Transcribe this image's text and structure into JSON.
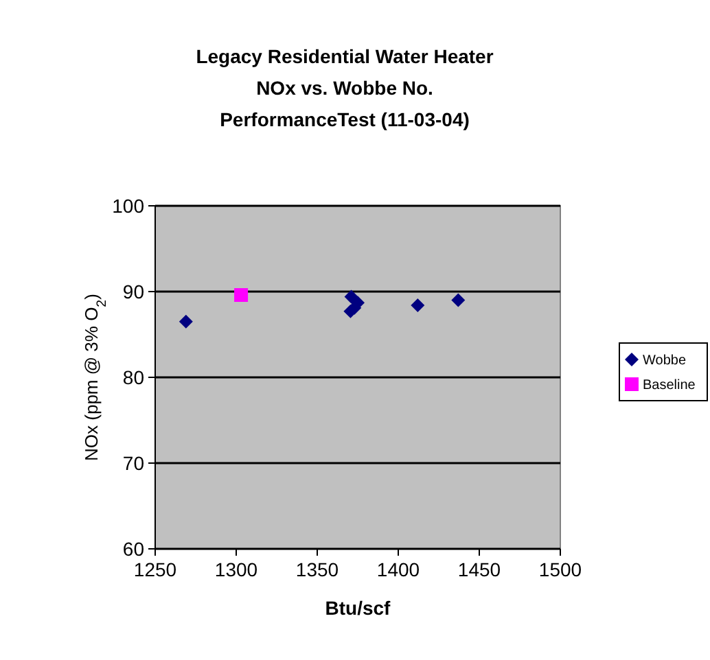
{
  "chart_data": {
    "type": "scatter",
    "title": "Legacy Residential Water Heater\nNOx vs. Wobbe No.\nPerformanceTest (11-03-04)",
    "xlabel": "Btu/scf",
    "ylabel": "NOx (ppm @ 3% O$_{2}$)",
    "xlim": [
      1250,
      1500
    ],
    "xticks": [
      1250,
      1300,
      1350,
      1400,
      1450,
      1500
    ],
    "ylim": [
      60,
      100
    ],
    "yticks": [
      60,
      70,
      80,
      90,
      100
    ],
    "grid": "y",
    "legend": "right",
    "series": [
      {
        "name": "Wobbe",
        "color": "#000080",
        "marker": "diamond",
        "x": [
          1269,
          1370.5,
          1371,
          1375,
          1373,
          1412,
          1437
        ],
        "values": [
          86.5,
          87.7,
          89.4,
          88.7,
          88.1,
          88.4,
          89.0
        ]
      },
      {
        "name": "Baseline",
        "color": "#ff00ff",
        "marker": "square",
        "x": [
          1303
        ],
        "values": [
          89.6
        ]
      }
    ]
  }
}
